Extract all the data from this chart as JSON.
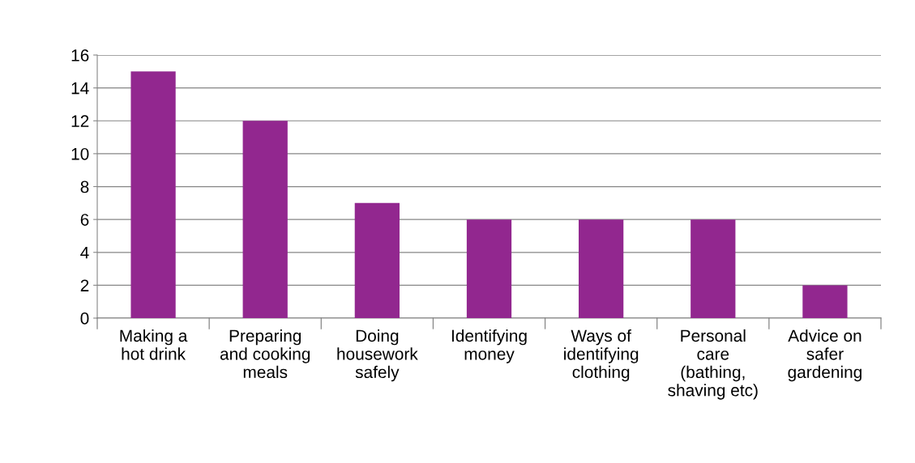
{
  "chart_data": {
    "type": "bar",
    "categories": [
      "Making a\nhot drink",
      "Preparing\nand cooking\nmeals",
      "Doing\nhousework\nsafely",
      "Identifying\nmoney",
      "Ways of\nidentifying\nclothing",
      "Personal\ncare\n(bathing,\nshaving etc)",
      "Advice on\nsafer\ngardening"
    ],
    "values": [
      15,
      12,
      7,
      6,
      6,
      6,
      2
    ],
    "color": "#92278f",
    "ylim": [
      0,
      16
    ],
    "yticks": [
      0,
      2,
      4,
      6,
      8,
      10,
      12,
      14,
      16
    ],
    "grid": "y",
    "legend": false
  }
}
